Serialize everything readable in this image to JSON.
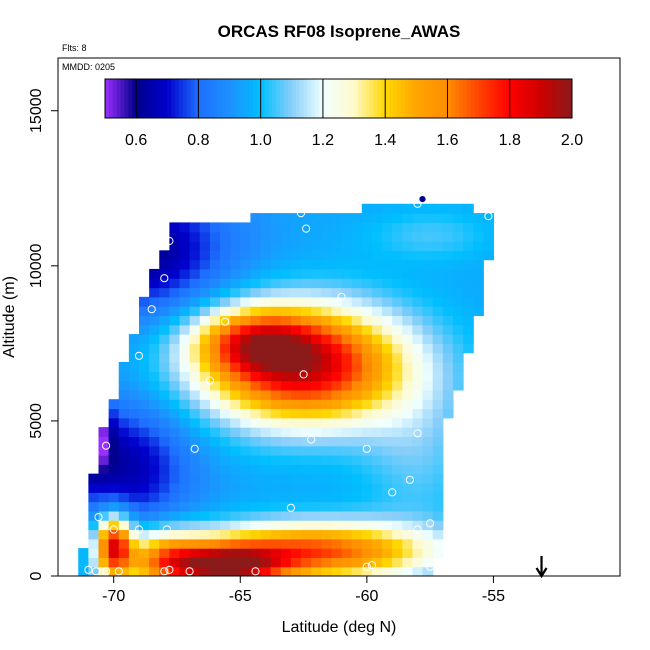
{
  "chart_data": {
    "type": "heatmap",
    "title": "ORCAS RF08 Isoprene_AWAS",
    "subtitle_flights": "Flts: 8",
    "subtitle_date": "MMDD: 0205",
    "xlabel": "Latitude (deg N)",
    "ylabel": "Altitude (m)",
    "xlim": [
      -72.2,
      -50.0
    ],
    "ylim": [
      0,
      16700
    ],
    "x_ticks": [
      -70,
      -65,
      -60,
      -55
    ],
    "x_tick_labels": [
      "-70",
      "-65",
      "-60",
      "-55"
    ],
    "y_ticks": [
      0,
      5000,
      10000,
      15000
    ],
    "y_tick_labels": [
      "0",
      "5000",
      "10000",
      "15000"
    ],
    "colorbar": {
      "range": [
        0.5,
        2.0
      ],
      "ticks": [
        0.6,
        0.8,
        1.0,
        1.2,
        1.4,
        1.6,
        1.8,
        2.0
      ],
      "tick_labels": [
        "0.6",
        "0.8",
        "1.0",
        "1.2",
        "1.4",
        "1.6",
        "1.8",
        "2.0"
      ],
      "stops": [
        {
          "v": 0.5,
          "color": "#9b30ff"
        },
        {
          "v": 0.6,
          "color": "#00008b"
        },
        {
          "v": 0.7,
          "color": "#0000cd"
        },
        {
          "v": 0.8,
          "color": "#1e6fff"
        },
        {
          "v": 0.9,
          "color": "#1e90ff"
        },
        {
          "v": 1.0,
          "color": "#00bfff"
        },
        {
          "v": 1.1,
          "color": "#87cefa"
        },
        {
          "v": 1.2,
          "color": "#f0ffff"
        },
        {
          "v": 1.3,
          "color": "#fffacd"
        },
        {
          "v": 1.4,
          "color": "#ffd700"
        },
        {
          "v": 1.5,
          "color": "#ffa500"
        },
        {
          "v": 1.6,
          "color": "#ff8c00"
        },
        {
          "v": 1.7,
          "color": "#ff4500"
        },
        {
          "v": 1.8,
          "color": "#ff0000"
        },
        {
          "v": 1.9,
          "color": "#cd0000"
        },
        {
          "v": 2.0,
          "color": "#8b1a1a"
        }
      ]
    },
    "field": {
      "lat_range": [
        -71.4,
        -54.8
      ],
      "alt_range": [
        0,
        12300
      ],
      "base_value": 0.95,
      "footprint": {
        "left_edge": [
          [
            0,
            -71.3
          ],
          [
            2300,
            -71.0
          ],
          [
            4500,
            -70.5
          ],
          [
            7000,
            -69.5
          ],
          [
            9000,
            -68.8
          ],
          [
            11000,
            -67.8
          ],
          [
            11500,
            -67.4
          ]
        ],
        "right_edge": [
          [
            0,
            -57.3
          ],
          [
            2000,
            -57.0
          ],
          [
            5000,
            -56.8
          ],
          [
            6500,
            -56.2
          ],
          [
            8500,
            -55.6
          ],
          [
            11600,
            -54.8
          ]
        ],
        "top_edge": [
          [
            -67.4,
            11400
          ],
          [
            -62.0,
            11700
          ],
          [
            -58.0,
            12000
          ],
          [
            -55.2,
            11800
          ]
        ]
      },
      "features": [
        {
          "lat": -62.5,
          "alt": 6800,
          "slat": 2.8,
          "salt": 1300,
          "amp": 0.95
        },
        {
          "lat": -64.5,
          "alt": 7600,
          "slat": 1.6,
          "salt": 700,
          "amp": 0.45
        },
        {
          "lat": -62.0,
          "alt": 800,
          "slat": 3.2,
          "salt": 650,
          "amp": 0.75
        },
        {
          "lat": -68.0,
          "alt": 500,
          "slat": 1.2,
          "salt": 700,
          "amp": 0.55
        },
        {
          "lat": -65.5,
          "alt": 300,
          "slat": 1.5,
          "salt": 500,
          "amp": 0.8
        },
        {
          "lat": -70.0,
          "alt": 1000,
          "slat": 0.5,
          "salt": 700,
          "amp": 0.85
        },
        {
          "lat": -69.0,
          "alt": 10500,
          "slat": 2.5,
          "salt": 1500,
          "amp": -0.35
        },
        {
          "lat": -69.5,
          "alt": 3500,
          "slat": 1.8,
          "salt": 1500,
          "amp": -0.3
        },
        {
          "lat": -71.0,
          "alt": 4500,
          "slat": 0.6,
          "salt": 800,
          "amp": -0.4
        },
        {
          "lat": -58.0,
          "alt": 4000,
          "slat": 1.6,
          "salt": 1800,
          "amp": 0.12
        },
        {
          "lat": -57.5,
          "alt": 11000,
          "slat": 1.8,
          "salt": 600,
          "amp": 0.1
        }
      ]
    },
    "samples": [
      {
        "lat": -70.6,
        "alt": 1900
      },
      {
        "lat": -70.0,
        "alt": 1500
      },
      {
        "lat": -69.0,
        "alt": 1500
      },
      {
        "lat": -67.9,
        "alt": 1500
      },
      {
        "lat": -70.3,
        "alt": 4200
      },
      {
        "lat": -66.8,
        "alt": 4100
      },
      {
        "lat": -69.0,
        "alt": 7100
      },
      {
        "lat": -68.5,
        "alt": 8600
      },
      {
        "lat": -68.0,
        "alt": 9600
      },
      {
        "lat": -67.8,
        "alt": 10800
      },
      {
        "lat": -66.2,
        "alt": 6300
      },
      {
        "lat": -65.6,
        "alt": 8200
      },
      {
        "lat": -62.5,
        "alt": 6500
      },
      {
        "lat": -63.0,
        "alt": 2200
      },
      {
        "lat": -62.2,
        "alt": 4400
      },
      {
        "lat": -61.0,
        "alt": 9000
      },
      {
        "lat": -60.0,
        "alt": 4100
      },
      {
        "lat": -58.0,
        "alt": 4600
      },
      {
        "lat": -59.0,
        "alt": 2700
      },
      {
        "lat": -58.3,
        "alt": 3100
      },
      {
        "lat": -58.0,
        "alt": 1500
      },
      {
        "lat": -57.5,
        "alt": 1700
      },
      {
        "lat": -62.4,
        "alt": 11200
      },
      {
        "lat": -62.6,
        "alt": 11700
      },
      {
        "lat": -58.0,
        "alt": 12000
      },
      {
        "lat": -55.2,
        "alt": 11600
      },
      {
        "lat": -71.0,
        "alt": 200
      },
      {
        "lat": -70.7,
        "alt": 150
      },
      {
        "lat": -70.3,
        "alt": 150
      },
      {
        "lat": -69.8,
        "alt": 150
      },
      {
        "lat": -68.0,
        "alt": 150
      },
      {
        "lat": -67.0,
        "alt": 150
      },
      {
        "lat": -64.4,
        "alt": 150
      },
      {
        "lat": -60.0,
        "alt": 300
      },
      {
        "lat": -59.8,
        "alt": 350
      },
      {
        "lat": -57.5,
        "alt": 300
      },
      {
        "lat": -67.8,
        "alt": 200
      },
      {
        "lat": -71.2,
        "alt": 1400
      }
    ],
    "highlight_sample": {
      "lat": -57.8,
      "alt": 12150
    },
    "arrow_lat": -53.1
  }
}
